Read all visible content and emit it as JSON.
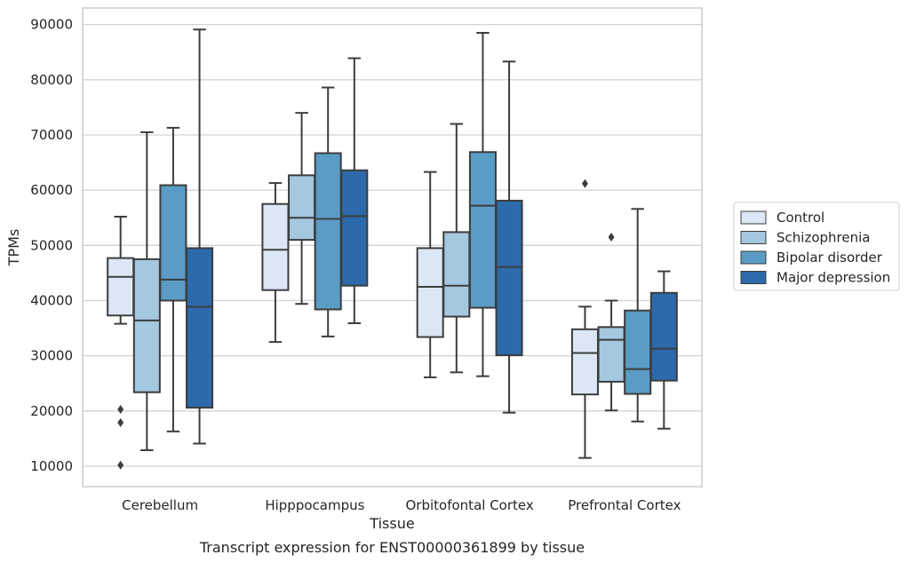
{
  "caption": "Transcript expression for ENST00000361899 by tissue",
  "chart_data": {
    "type": "box",
    "title": "",
    "xlabel": "Tissue",
    "ylabel": "TPMs",
    "ylim": [
      6300,
      93000
    ],
    "yticks": [
      10000,
      20000,
      30000,
      40000,
      50000,
      60000,
      70000,
      80000,
      90000
    ],
    "grid": "horizontal",
    "legend_position": "right",
    "categories": [
      "Cerebellum",
      "Hipppocampus",
      "Orbitofontal Cortex",
      "Prefrontal Cortex"
    ],
    "series": [
      {
        "name": "Control",
        "color": "#dbe7f4",
        "boxes": [
          {
            "whisker_low": 35800,
            "q1": 37300,
            "median": 44300,
            "q3": 47700,
            "whisker_high": 55200,
            "outliers": [
              20300,
              17900,
              10200
            ]
          },
          {
            "whisker_low": 32500,
            "q1": 41900,
            "median": 49200,
            "q3": 57500,
            "whisker_high": 61300,
            "outliers": []
          },
          {
            "whisker_low": 26100,
            "q1": 33400,
            "median": 42500,
            "q3": 49500,
            "whisker_high": 63300,
            "outliers": []
          },
          {
            "whisker_low": 11500,
            "q1": 23000,
            "median": 30500,
            "q3": 34800,
            "whisker_high": 38900,
            "outliers": [
              61200
            ]
          }
        ]
      },
      {
        "name": "Schizophrenia",
        "color": "#a4c8e0",
        "boxes": [
          {
            "whisker_low": 12900,
            "q1": 23400,
            "median": 36400,
            "q3": 47500,
            "whisker_high": 70500,
            "outliers": []
          },
          {
            "whisker_low": 39400,
            "q1": 51000,
            "median": 55000,
            "q3": 62700,
            "whisker_high": 74000,
            "outliers": []
          },
          {
            "whisker_low": 27000,
            "q1": 37100,
            "median": 42700,
            "q3": 52400,
            "whisker_high": 72000,
            "outliers": []
          },
          {
            "whisker_low": 20100,
            "q1": 25300,
            "median": 32900,
            "q3": 35200,
            "whisker_high": 40000,
            "outliers": [
              51500
            ]
          }
        ]
      },
      {
        "name": "Bipolar disorder",
        "color": "#5a9cc6",
        "boxes": [
          {
            "whisker_low": 16300,
            "q1": 40000,
            "median": 43800,
            "q3": 60900,
            "whisker_high": 71300,
            "outliers": []
          },
          {
            "whisker_low": 33500,
            "q1": 38400,
            "median": 54800,
            "q3": 66700,
            "whisker_high": 78600,
            "outliers": []
          },
          {
            "whisker_low": 26300,
            "q1": 38700,
            "median": 57200,
            "q3": 66900,
            "whisker_high": 88500,
            "outliers": []
          },
          {
            "whisker_low": 18100,
            "q1": 23100,
            "median": 27600,
            "q3": 38200,
            "whisker_high": 56600,
            "outliers": []
          }
        ]
      },
      {
        "name": "Major depression",
        "color": "#2c6aab",
        "boxes": [
          {
            "whisker_low": 14100,
            "q1": 20600,
            "median": 38900,
            "q3": 49500,
            "whisker_high": 89100,
            "outliers": []
          },
          {
            "whisker_low": 35900,
            "q1": 42700,
            "median": 55300,
            "q3": 63600,
            "whisker_high": 83900,
            "outliers": []
          },
          {
            "whisker_low": 19700,
            "q1": 30100,
            "median": 46100,
            "q3": 58100,
            "whisker_high": 83300,
            "outliers": []
          },
          {
            "whisker_low": 16800,
            "q1": 25500,
            "median": 31300,
            "q3": 41400,
            "whisker_high": 45300,
            "outliers": []
          }
        ]
      }
    ]
  }
}
